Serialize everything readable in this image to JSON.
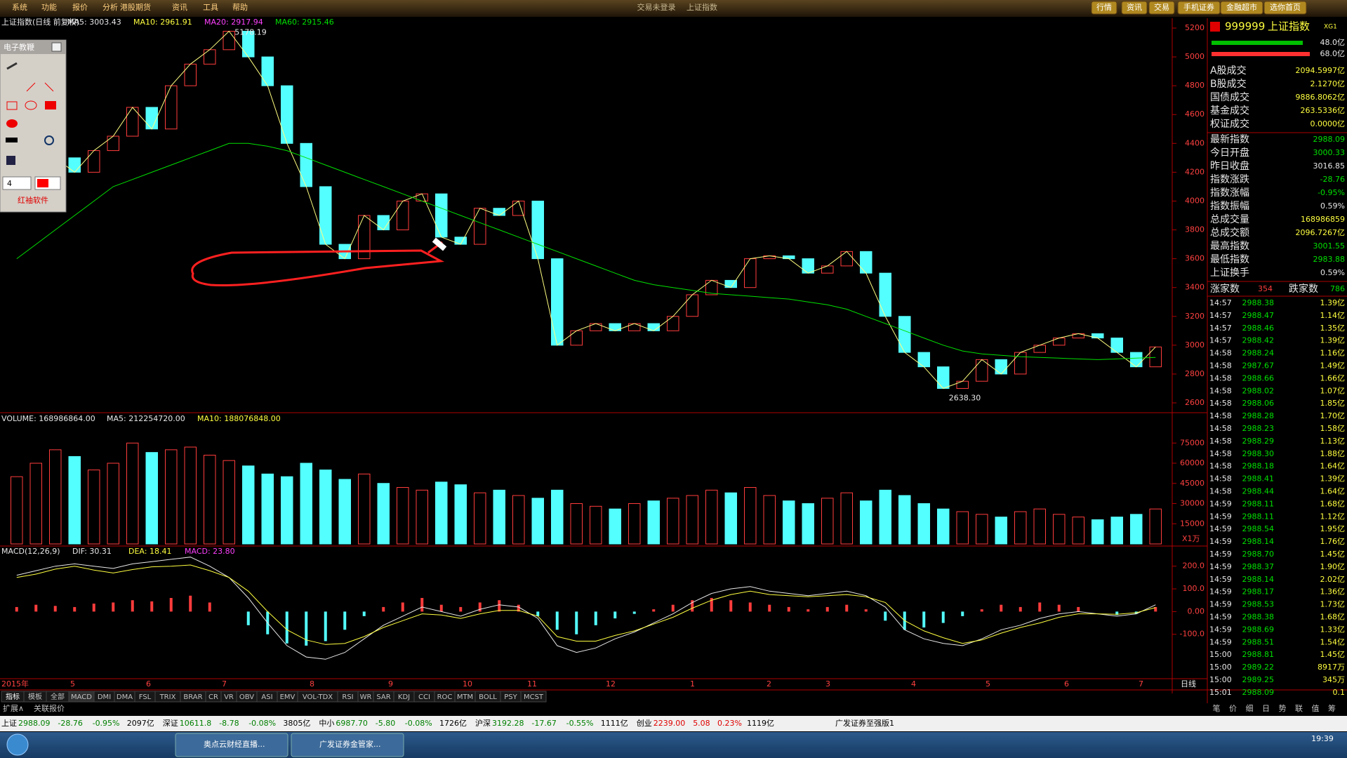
{
  "menu": {
    "items": [
      "系统",
      "功能",
      "报价",
      "分析",
      "港股期货",
      "资讯",
      "工具",
      "帮助"
    ],
    "center": [
      "交易未登录",
      "上证指数"
    ],
    "buttons": [
      "行情",
      "资讯",
      "交易",
      "手机证券",
      "金融超市",
      "选你首页"
    ]
  },
  "price_chart": {
    "type": "candlestick",
    "title": "上证指数(日线 前复权)",
    "ma_labels": [
      "MA5: 3003.43",
      "MA10: 2961.91",
      "MA20: 2917.94",
      "MA60: 2915.46"
    ],
    "closes": [
      4100,
      4250,
      4300,
      4200,
      4350,
      4450,
      4650,
      4500,
      4800,
      4950,
      5050,
      5178,
      5000,
      4800,
      4400,
      4100,
      3700,
      3600,
      3900,
      3800,
      4000,
      4050,
      3750,
      3700,
      3950,
      3900,
      4000,
      3600,
      3000,
      3100,
      3150,
      3100,
      3150,
      3100,
      3200,
      3350,
      3450,
      3400,
      3600,
      3620,
      3600,
      3500,
      3550,
      3650,
      3500,
      3200,
      2950,
      2850,
      2700,
      2750,
      2900,
      2800,
      2950,
      3000,
      3050,
      3080,
      3050,
      2950,
      2850,
      2988
    ],
    "ma60": [
      3600,
      3700,
      3800,
      3900,
      4000,
      4100,
      4150,
      4200,
      4250,
      4300,
      4350,
      4400,
      4400,
      4380,
      4350,
      4300,
      4250,
      4200,
      4150,
      4100,
      4050,
      4000,
      3950,
      3900,
      3850,
      3800,
      3750,
      3700,
      3650,
      3600,
      3550,
      3500,
      3450,
      3420,
      3400,
      3380,
      3360,
      3350,
      3340,
      3330,
      3320,
      3300,
      3280,
      3250,
      3200,
      3150,
      3100,
      3050,
      3000,
      2960,
      2940,
      2930,
      2920,
      2915,
      2910,
      2905,
      2900,
      2905,
      2910,
      2915
    ],
    "ylim": [
      2600,
      5200
    ],
    "yticks": [
      2600,
      2800,
      3000,
      3200,
      3400,
      3600,
      3800,
      4000,
      4200,
      4400,
      4600,
      4800,
      5000,
      5200
    ],
    "annotations": [
      "5178.19",
      "2638.30"
    ]
  },
  "volume_chart": {
    "type": "bar",
    "header": [
      "VOLUME: 168986864.00",
      "MA5: 212254720.00",
      "MA10: 188076848.00"
    ],
    "unit": "X1万",
    "values": [
      50000,
      60000,
      70000,
      65000,
      55000,
      60000,
      75000,
      68000,
      70000,
      72000,
      66000,
      62000,
      58000,
      52000,
      50000,
      60000,
      55000,
      48000,
      52000,
      45000,
      42000,
      40000,
      46000,
      44000,
      38000,
      40000,
      36000,
      34000,
      40000,
      30000,
      28000,
      26000,
      30000,
      32000,
      34000,
      36000,
      40000,
      38000,
      42000,
      36000,
      32000,
      30000,
      34000,
      38000,
      32000,
      40000,
      36000,
      30000,
      26000,
      24000,
      22000,
      20000,
      24000,
      26000,
      22000,
      20000,
      18000,
      20000,
      22000,
      26000
    ],
    "ylim": [
      0,
      90000
    ],
    "yticks": [
      15000,
      30000,
      45000,
      60000,
      75000
    ]
  },
  "macd_chart": {
    "type": "macd",
    "header": [
      "MACD(12,26,9)",
      "DIF: 30.31",
      "DEA: 18.41",
      "MACD: 23.80"
    ],
    "hist": [
      20,
      30,
      25,
      20,
      35,
      40,
      50,
      45,
      60,
      70,
      40,
      0,
      -60,
      -100,
      -140,
      -150,
      -130,
      -80,
      -20,
      20,
      40,
      60,
      30,
      20,
      40,
      50,
      30,
      -20,
      -80,
      -100,
      -60,
      -30,
      -10,
      10,
      30,
      50,
      60,
      50,
      40,
      30,
      20,
      10,
      20,
      30,
      10,
      -40,
      -80,
      -70,
      -50,
      -20,
      10,
      30,
      20,
      40,
      30,
      20,
      0,
      -15,
      -10,
      20
    ],
    "dif": [
      160,
      180,
      200,
      210,
      200,
      190,
      210,
      220,
      230,
      240,
      200,
      150,
      60,
      -50,
      -150,
      -200,
      -210,
      -180,
      -120,
      -60,
      -20,
      20,
      0,
      -20,
      10,
      30,
      20,
      -30,
      -150,
      -180,
      -160,
      -120,
      -90,
      -50,
      -10,
      40,
      80,
      100,
      110,
      90,
      80,
      70,
      80,
      90,
      70,
      20,
      -80,
      -120,
      -140,
      -150,
      -120,
      -80,
      -60,
      -30,
      -10,
      0,
      -10,
      -20,
      -10,
      30
    ],
    "dea": [
      150,
      165,
      187,
      200,
      183,
      170,
      185,
      197,
      200,
      205,
      180,
      150,
      90,
      0,
      -80,
      -125,
      -145,
      -140,
      -110,
      -70,
      -40,
      -10,
      -15,
      -30,
      -10,
      5,
      5,
      -20,
      -110,
      -130,
      -130,
      -105,
      -85,
      -55,
      -25,
      15,
      50,
      75,
      90,
      75,
      70,
      65,
      70,
      75,
      65,
      40,
      -40,
      -85,
      -115,
      -140,
      -125,
      -95,
      -70,
      -50,
      -25,
      -10,
      -10,
      -12,
      -5,
      18
    ],
    "ylim": [
      -280,
      270
    ],
    "yticks": [
      {
        "value": 200,
        "label": "200.0"
      },
      {
        "value": 100,
        "label": "100.0"
      },
      {
        "value": 0,
        "label": "0.00"
      },
      {
        "value": -100,
        "label": "-100.0"
      }
    ]
  },
  "dates": [
    "2015年",
    "5",
    "6",
    "7",
    "8",
    "9",
    "10",
    "11",
    "12",
    "1",
    "2",
    "3",
    "4",
    "5",
    "6",
    "7"
  ],
  "period": "日线",
  "tabs": [
    "指标",
    "模板",
    "全部",
    "MACD",
    "DMI",
    "DMA",
    "FSL",
    "TRIX",
    "BRAR",
    "CR",
    "VR",
    "OBV",
    "ASI",
    "EMV",
    "VOL-TDX",
    "RSI",
    "WR",
    "SAR",
    "KDJ",
    "CCI",
    "ROC",
    "MTM",
    "BOLL",
    "PSY",
    "MCST"
  ],
  "subtabs": [
    "扩展∧",
    "关联报价"
  ],
  "toolbox": {
    "title": "电子教鞭",
    "size": "4",
    "brand": "红袖软件"
  },
  "quote": {
    "code": "999999",
    "name": "上证指数",
    "suffix": "XG1",
    "bar_labels": [
      "48.0亿",
      "68.0亿"
    ],
    "turnover": [
      [
        "A股成交",
        "2094.5997亿"
      ],
      [
        "B股成交",
        "2.1270亿"
      ],
      [
        "国债成交",
        "9886.8062亿"
      ],
      [
        "基金成交",
        "263.5336亿"
      ],
      [
        "权证成交",
        "0.0000亿"
      ]
    ],
    "stats": [
      [
        "最新指数",
        "2988.09"
      ],
      [
        "今日开盘",
        "3000.33"
      ],
      [
        "昨日收盘",
        "3016.85"
      ],
      [
        "指数涨跌",
        "-28.76"
      ],
      [
        "指数涨幅",
        "-0.95%"
      ],
      [
        "指数振幅",
        "0.59%"
      ],
      [
        "总成交量",
        "168986859"
      ],
      [
        "总成交额",
        "2096.7267亿"
      ],
      [
        "最高指数",
        "3001.55"
      ],
      [
        "最低指数",
        "2983.88"
      ],
      [
        "上证换手",
        "0.59%"
      ]
    ],
    "breadth": [
      "涨家数",
      "354",
      "跌家数",
      "786"
    ],
    "ticks": [
      [
        "14:57",
        "2988.38",
        "1.39亿"
      ],
      [
        "14:57",
        "2988.47",
        "1.14亿"
      ],
      [
        "14:57",
        "2988.46",
        "1.35亿"
      ],
      [
        "14:57",
        "2988.42",
        "1.39亿"
      ],
      [
        "14:58",
        "2988.24",
        "1.16亿"
      ],
      [
        "14:58",
        "2987.67",
        "1.49亿"
      ],
      [
        "14:58",
        "2988.66",
        "1.66亿"
      ],
      [
        "14:58",
        "2988.02",
        "1.07亿"
      ],
      [
        "14:58",
        "2988.06",
        "1.85亿"
      ],
      [
        "14:58",
        "2988.28",
        "1.70亿"
      ],
      [
        "14:58",
        "2988.23",
        "1.58亿"
      ],
      [
        "14:58",
        "2988.29",
        "1.13亿"
      ],
      [
        "14:58",
        "2988.30",
        "1.88亿"
      ],
      [
        "14:58",
        "2988.18",
        "1.64亿"
      ],
      [
        "14:58",
        "2988.41",
        "1.39亿"
      ],
      [
        "14:58",
        "2988.44",
        "1.64亿"
      ],
      [
        "14:59",
        "2988.11",
        "1.68亿"
      ],
      [
        "14:59",
        "2988.11",
        "1.12亿"
      ],
      [
        "14:59",
        "2988.54",
        "1.95亿"
      ],
      [
        "14:59",
        "2988.14",
        "1.76亿"
      ],
      [
        "14:59",
        "2988.70",
        "1.45亿"
      ],
      [
        "14:59",
        "2988.37",
        "1.90亿"
      ],
      [
        "14:59",
        "2988.14",
        "2.02亿"
      ],
      [
        "14:59",
        "2988.17",
        "1.36亿"
      ],
      [
        "14:59",
        "2988.53",
        "1.73亿"
      ],
      [
        "14:59",
        "2988.38",
        "1.68亿"
      ],
      [
        "14:59",
        "2988.69",
        "1.33亿"
      ],
      [
        "14:59",
        "2988.51",
        "1.54亿"
      ],
      [
        "15:00",
        "2988.81",
        "1.45亿"
      ],
      [
        "15:00",
        "2989.22",
        "8917万"
      ],
      [
        "15:00",
        "2989.25",
        "345万"
      ],
      [
        "15:01",
        "2988.09",
        "0.1"
      ]
    ],
    "tabs": [
      "笔",
      "价",
      "细",
      "日",
      "势",
      "联",
      "值",
      "筹"
    ]
  },
  "status": {
    "items": [
      [
        "上证",
        "2988.09",
        "-28.76",
        "-0.95%",
        "2097亿"
      ],
      [
        "深证",
        "10611.8",
        "-8.78",
        "-0.08%",
        "3805亿"
      ],
      [
        "中小",
        "6987.70",
        "-5.80",
        "-0.08%",
        "1726亿"
      ],
      [
        "沪深",
        "3192.28",
        "-17.67",
        "-0.55%",
        "1111亿"
      ],
      [
        "创业",
        "2239.00",
        "5.08",
        "0.23%",
        "1119亿"
      ]
    ],
    "broker": "广发证券至强版1"
  },
  "taskbar": {
    "apps": [
      "奥点云财经直播...",
      "广发证券金管家..."
    ],
    "time": "19:39"
  }
}
